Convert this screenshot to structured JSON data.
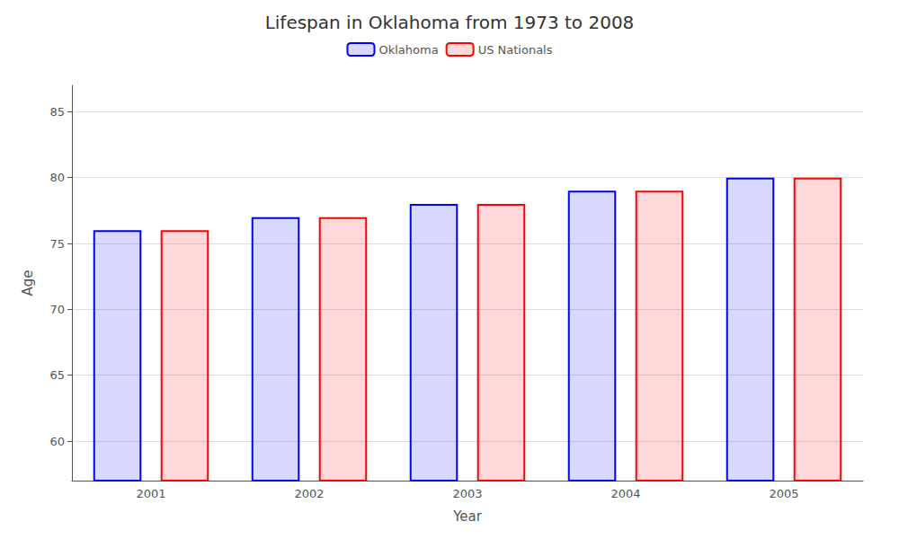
{
  "chart_data": {
    "type": "bar",
    "title": "Lifespan in Oklahoma from 1973 to 2008",
    "xlabel": "Year",
    "ylabel": "Age",
    "categories": [
      "2001",
      "2002",
      "2003",
      "2004",
      "2005"
    ],
    "series": [
      {
        "name": "Oklahoma",
        "color": "#0000ff",
        "values": [
          76,
          77,
          78,
          79,
          80
        ]
      },
      {
        "name": "US Nationals",
        "color": "#ff0000",
        "values": [
          76,
          77,
          78,
          79,
          80
        ]
      }
    ],
    "ylim": [
      57,
      87
    ],
    "yticks": [
      60,
      65,
      70,
      75,
      80,
      85
    ],
    "grid": true,
    "legend": "top"
  }
}
